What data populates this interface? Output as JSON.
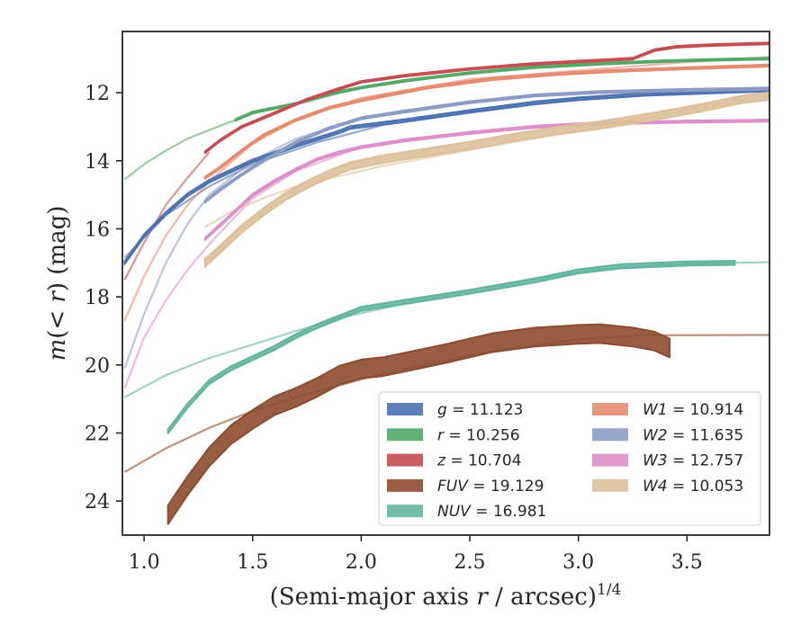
{
  "chart_data": {
    "type": "line",
    "title": "",
    "xlabel": "(Semi-major axis r / arcsec)",
    "xlabel_parts": {
      "prefix": "(Semi-major axis ",
      "var": "r",
      "suffix": " / arcsec)",
      "exponent": "1/4"
    },
    "ylabel": "m(< r) (mag)",
    "ylabel_parts": {
      "m": "m",
      "open": "(",
      "lt": "<",
      "r": " r",
      "close": ")",
      "unit": " (mag)"
    },
    "xlim": [
      0.9,
      3.88
    ],
    "ylim": [
      25.0,
      10.2
    ],
    "y_inverted": true,
    "xticks": [
      1.0,
      1.5,
      2.0,
      2.5,
      3.0,
      3.5
    ],
    "xtick_labels": [
      "1.0",
      "1.5",
      "2.0",
      "2.5",
      "3.0",
      "3.5"
    ],
    "yticks": [
      12,
      14,
      16,
      18,
      20,
      22,
      24
    ],
    "ytick_labels": [
      "12",
      "14",
      "16",
      "18",
      "20",
      "22",
      "24"
    ],
    "grid": false,
    "legend_position": "lower-right",
    "legend_columns": 2,
    "series": [
      {
        "name": "g",
        "legend_value": "11.123",
        "color": "#4c72b0",
        "data": [
          [
            0.91,
            17.0
          ],
          [
            1.0,
            16.2
          ],
          [
            1.1,
            15.55
          ],
          [
            1.2,
            15.0
          ],
          [
            1.3,
            14.6
          ],
          [
            1.4,
            14.3
          ],
          [
            1.5,
            14.0
          ],
          [
            1.6,
            13.78
          ],
          [
            1.7,
            13.55
          ],
          [
            1.8,
            13.35
          ],
          [
            1.9,
            13.15
          ],
          [
            1.95,
            13.02
          ],
          [
            2.0,
            12.98
          ],
          [
            2.2,
            12.82
          ],
          [
            2.5,
            12.55
          ],
          [
            2.8,
            12.3
          ],
          [
            3.0,
            12.18
          ],
          [
            3.3,
            12.05
          ],
          [
            3.6,
            11.98
          ],
          [
            3.88,
            11.92
          ]
        ],
        "model": [
          [
            0.91,
            16.85
          ],
          [
            1.1,
            15.6
          ],
          [
            1.3,
            14.75
          ],
          [
            1.5,
            14.1
          ],
          [
            1.8,
            13.45
          ],
          [
            2.1,
            12.95
          ],
          [
            2.5,
            12.55
          ],
          [
            3.0,
            12.2
          ],
          [
            3.5,
            12.0
          ],
          [
            3.88,
            11.9
          ]
        ],
        "band_width": 0.08
      },
      {
        "name": "r",
        "legend_value": "10.256",
        "color": "#55a868",
        "data": [
          [
            1.42,
            12.8
          ],
          [
            1.5,
            12.58
          ],
          [
            1.6,
            12.45
          ],
          [
            1.7,
            12.32
          ],
          [
            1.8,
            12.15
          ],
          [
            1.9,
            11.98
          ],
          [
            2.0,
            11.85
          ],
          [
            2.2,
            11.65
          ],
          [
            2.5,
            11.42
          ],
          [
            2.8,
            11.25
          ],
          [
            3.1,
            11.15
          ],
          [
            3.4,
            11.07
          ],
          [
            3.7,
            11.02
          ],
          [
            3.88,
            11.0
          ]
        ],
        "model": [
          [
            0.91,
            14.55
          ],
          [
            1.0,
            14.1
          ],
          [
            1.1,
            13.7
          ],
          [
            1.2,
            13.35
          ],
          [
            1.3,
            13.1
          ],
          [
            1.4,
            12.85
          ],
          [
            1.5,
            12.62
          ],
          [
            1.6,
            12.45
          ]
        ],
        "band_width": 0.05
      },
      {
        "name": "z",
        "legend_value": "10.704",
        "color": "#c44e52",
        "data": [
          [
            1.28,
            13.75
          ],
          [
            1.35,
            13.4
          ],
          [
            1.45,
            13.0
          ],
          [
            1.6,
            12.6
          ],
          [
            1.75,
            12.2
          ],
          [
            1.9,
            11.88
          ],
          [
            2.0,
            11.68
          ],
          [
            2.2,
            11.5
          ],
          [
            2.5,
            11.3
          ],
          [
            2.8,
            11.15
          ],
          [
            3.1,
            11.05
          ],
          [
            3.25,
            11.0
          ],
          [
            3.35,
            10.75
          ],
          [
            3.45,
            10.65
          ],
          [
            3.6,
            10.6
          ],
          [
            3.88,
            10.55
          ]
        ],
        "model": [
          [
            0.91,
            17.5
          ],
          [
            1.0,
            16.4
          ],
          [
            1.1,
            15.3
          ],
          [
            1.2,
            14.5
          ],
          [
            1.3,
            13.75
          ]
        ],
        "band_width": 0.05
      },
      {
        "name": "FUV",
        "legend_value": "19.129",
        "color": "#8c4c2f",
        "data": [
          [
            1.11,
            24.4
          ],
          [
            1.2,
            23.55
          ],
          [
            1.3,
            22.7
          ],
          [
            1.4,
            22.05
          ],
          [
            1.5,
            21.6
          ],
          [
            1.6,
            21.2
          ],
          [
            1.7,
            20.95
          ],
          [
            1.8,
            20.65
          ],
          [
            1.9,
            20.3
          ],
          [
            2.0,
            20.12
          ],
          [
            2.1,
            20.05
          ],
          [
            2.2,
            19.92
          ],
          [
            2.4,
            19.65
          ],
          [
            2.6,
            19.35
          ],
          [
            2.8,
            19.18
          ],
          [
            3.0,
            19.1
          ],
          [
            3.1,
            19.08
          ],
          [
            3.25,
            19.18
          ],
          [
            3.35,
            19.3
          ],
          [
            3.42,
            19.5
          ]
        ],
        "model": [
          [
            0.91,
            23.15
          ],
          [
            1.1,
            22.45
          ],
          [
            1.3,
            21.85
          ],
          [
            1.5,
            21.35
          ],
          [
            1.7,
            20.95
          ],
          [
            1.9,
            20.6
          ],
          [
            2.1,
            20.25
          ],
          [
            2.4,
            19.85
          ],
          [
            2.7,
            19.5
          ],
          [
            3.0,
            19.25
          ],
          [
            3.3,
            19.13
          ],
          [
            3.88,
            19.12
          ]
        ],
        "band_width": 0.55
      },
      {
        "name": "NUV",
        "legend_value": "16.981",
        "color": "#64b5a0",
        "data": [
          [
            1.11,
            21.95
          ],
          [
            1.2,
            21.2
          ],
          [
            1.3,
            20.5
          ],
          [
            1.4,
            20.1
          ],
          [
            1.5,
            19.8
          ],
          [
            1.6,
            19.5
          ],
          [
            1.7,
            19.15
          ],
          [
            1.8,
            18.85
          ],
          [
            1.9,
            18.6
          ],
          [
            2.0,
            18.35
          ],
          [
            2.2,
            18.15
          ],
          [
            2.5,
            17.85
          ],
          [
            2.8,
            17.52
          ],
          [
            3.0,
            17.25
          ],
          [
            3.2,
            17.1
          ],
          [
            3.5,
            17.02
          ],
          [
            3.72,
            17.0
          ]
        ],
        "model": [
          [
            0.91,
            20.95
          ],
          [
            1.1,
            20.3
          ],
          [
            1.3,
            19.8
          ],
          [
            1.5,
            19.4
          ],
          [
            1.7,
            19.0
          ],
          [
            1.9,
            18.62
          ],
          [
            2.2,
            18.2
          ],
          [
            2.5,
            17.8
          ],
          [
            2.8,
            17.45
          ],
          [
            3.1,
            17.2
          ],
          [
            3.5,
            17.02
          ],
          [
            3.88,
            16.98
          ]
        ],
        "band_width": 0.12
      },
      {
        "name": "W1",
        "legend_value": "10.914",
        "color": "#e48c70",
        "data": [
          [
            1.28,
            14.5
          ],
          [
            1.35,
            14.2
          ],
          [
            1.45,
            13.7
          ],
          [
            1.55,
            13.25
          ],
          [
            1.7,
            12.8
          ],
          [
            1.85,
            12.45
          ],
          [
            2.0,
            12.22
          ],
          [
            2.3,
            11.85
          ],
          [
            2.6,
            11.6
          ],
          [
            2.9,
            11.45
          ],
          [
            3.2,
            11.35
          ],
          [
            3.5,
            11.28
          ],
          [
            3.88,
            11.2
          ]
        ],
        "model": [
          [
            0.91,
            18.7
          ],
          [
            1.0,
            17.4
          ],
          [
            1.1,
            16.2
          ],
          [
            1.2,
            15.3
          ],
          [
            1.3,
            14.6
          ],
          [
            1.5,
            13.5
          ],
          [
            1.7,
            12.8
          ],
          [
            2.0,
            12.15
          ],
          [
            2.5,
            11.6
          ],
          [
            3.0,
            11.35
          ],
          [
            3.5,
            11.1
          ],
          [
            3.88,
            10.95
          ]
        ],
        "band_width": 0.06
      },
      {
        "name": "W2",
        "legend_value": "11.635",
        "color": "#8c9cc4",
        "data": [
          [
            1.28,
            15.2
          ],
          [
            1.35,
            14.85
          ],
          [
            1.45,
            14.4
          ],
          [
            1.55,
            14.0
          ],
          [
            1.7,
            13.45
          ],
          [
            1.85,
            13.05
          ],
          [
            2.0,
            12.75
          ],
          [
            2.2,
            12.55
          ],
          [
            2.5,
            12.28
          ],
          [
            2.8,
            12.08
          ],
          [
            3.1,
            11.98
          ],
          [
            3.5,
            11.92
          ],
          [
            3.88,
            11.88
          ]
        ],
        "model": [
          [
            0.91,
            20.1
          ],
          [
            1.0,
            18.5
          ],
          [
            1.1,
            17.0
          ],
          [
            1.2,
            15.85
          ],
          [
            1.3,
            15.0
          ],
          [
            1.5,
            14.0
          ],
          [
            1.7,
            13.35
          ],
          [
            2.0,
            12.75
          ],
          [
            2.5,
            12.25
          ],
          [
            3.0,
            12.0
          ],
          [
            3.5,
            11.9
          ],
          [
            3.88,
            11.85
          ]
        ],
        "band_width": 0.06
      },
      {
        "name": "W3",
        "legend_value": "12.757",
        "color": "#dd8fc9",
        "data": [
          [
            1.28,
            16.3
          ],
          [
            1.4,
            15.6
          ],
          [
            1.5,
            15.0
          ],
          [
            1.6,
            14.6
          ],
          [
            1.7,
            14.25
          ],
          [
            1.8,
            13.95
          ],
          [
            1.9,
            13.75
          ],
          [
            2.0,
            13.6
          ],
          [
            2.2,
            13.4
          ],
          [
            2.5,
            13.18
          ],
          [
            2.8,
            13.0
          ],
          [
            3.1,
            12.9
          ],
          [
            3.5,
            12.85
          ],
          [
            3.88,
            12.82
          ]
        ],
        "model": [
          [
            0.91,
            20.7
          ],
          [
            1.0,
            19.2
          ],
          [
            1.1,
            18.1
          ],
          [
            1.2,
            17.2
          ],
          [
            1.3,
            16.45
          ],
          [
            1.5,
            15.1
          ],
          [
            1.7,
            14.3
          ],
          [
            2.0,
            13.6
          ],
          [
            2.5,
            13.15
          ],
          [
            3.0,
            12.95
          ],
          [
            3.5,
            12.85
          ],
          [
            3.88,
            12.8
          ]
        ],
        "band_width": 0.06
      },
      {
        "name": "W4",
        "legend_value": "10.053",
        "color": "#dcc09a",
        "data": [
          [
            1.28,
            17.0
          ],
          [
            1.35,
            16.6
          ],
          [
            1.45,
            16.0
          ],
          [
            1.55,
            15.5
          ],
          [
            1.65,
            15.05
          ],
          [
            1.75,
            14.7
          ],
          [
            1.85,
            14.4
          ],
          [
            1.95,
            14.15
          ],
          [
            2.1,
            13.95
          ],
          [
            2.3,
            13.75
          ],
          [
            2.5,
            13.55
          ],
          [
            2.7,
            13.32
          ],
          [
            2.9,
            13.12
          ],
          [
            3.1,
            12.95
          ],
          [
            3.3,
            12.75
          ],
          [
            3.45,
            12.58
          ],
          [
            3.6,
            12.4
          ],
          [
            3.75,
            12.2
          ],
          [
            3.88,
            12.1
          ]
        ],
        "model": [
          [
            1.28,
            15.95
          ],
          [
            1.4,
            15.5
          ],
          [
            1.55,
            15.1
          ],
          [
            1.7,
            14.75
          ],
          [
            1.9,
            14.45
          ],
          [
            2.1,
            14.15
          ],
          [
            2.4,
            13.8
          ],
          [
            2.7,
            13.45
          ],
          [
            3.0,
            13.1
          ],
          [
            3.3,
            12.75
          ],
          [
            3.6,
            12.4
          ],
          [
            3.88,
            12.1
          ]
        ],
        "band_width": 0.22
      }
    ]
  }
}
